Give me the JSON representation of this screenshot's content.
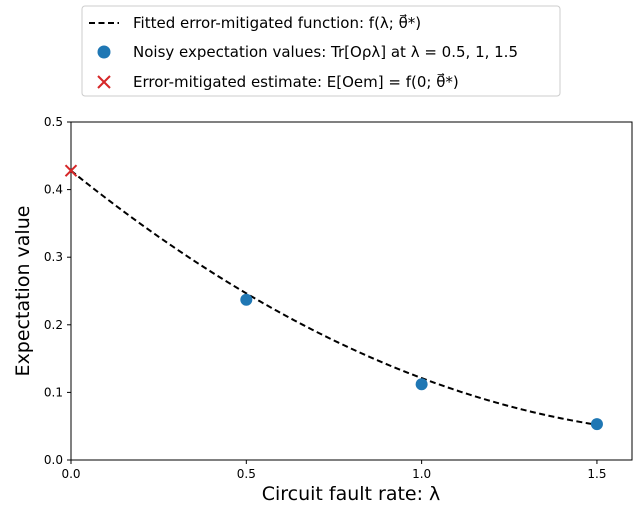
{
  "chart_data": {
    "type": "scatter",
    "xlabel": "Circuit fault rate: λ",
    "ylabel": "Expectation value",
    "xlim": [
      0.0,
      1.6
    ],
    "ylim": [
      0.0,
      0.5
    ],
    "xticks": [
      0.0,
      0.5,
      1.0,
      1.5
    ],
    "xtick_labels": [
      "0.0",
      "0.5",
      "1.0",
      "1.5"
    ],
    "yticks": [
      0.0,
      0.1,
      0.2,
      0.3,
      0.4,
      0.5
    ],
    "ytick_labels": [
      "0.0",
      "0.1",
      "0.2",
      "0.3",
      "0.4",
      "0.5"
    ],
    "grid": false,
    "legend_position": "above plot",
    "series": [
      {
        "name": "Fitted error-mitigated function: f(λ; θ⃗*)",
        "kind": "line",
        "style": "dashed",
        "color": "#000000",
        "coefficients": [
          0.428,
          -0.4192,
          0.1124
        ]
      },
      {
        "name": "Noisy expectation values: Tr[Oρλ] at λ = 0.5,  1,  1.5",
        "kind": "scatter",
        "marker": "circle",
        "color": "#1f77b4",
        "x": [
          0.5,
          1.0,
          1.5
        ],
        "y": [
          0.237,
          0.112,
          0.053
        ]
      },
      {
        "name": "Error-mitigated estimate: E[Oem] = f(0; θ⃗*)",
        "kind": "scatter",
        "marker": "x",
        "color": "#d62728",
        "x": [
          0.0
        ],
        "y": [
          0.428
        ]
      }
    ]
  }
}
